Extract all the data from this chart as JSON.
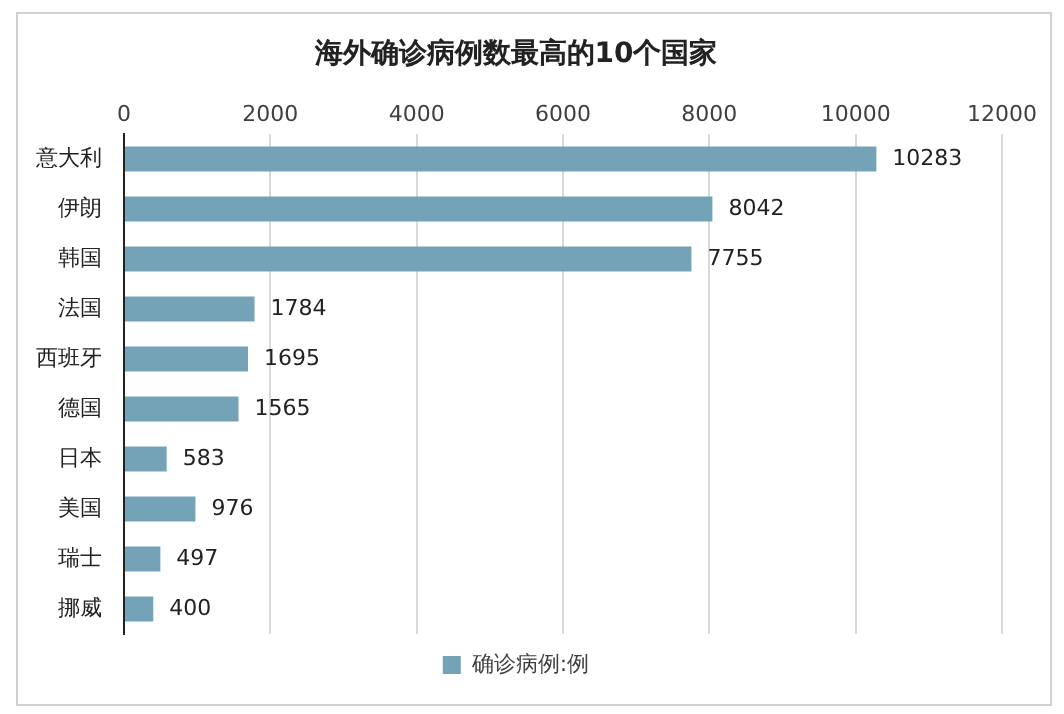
{
  "chart_data": {
    "type": "bar",
    "orientation": "horizontal",
    "title": "海外确诊病例数最高的10个国家",
    "categories": [
      "意大利",
      "伊朗",
      "韩国",
      "法国",
      "西班牙",
      "德国",
      "日本",
      "美国",
      "瑞士",
      "挪威"
    ],
    "series": [
      {
        "name": "确诊病例:例",
        "color": "#74a3b7",
        "values": [
          10283,
          8042,
          7755,
          1784,
          1695,
          1565,
          583,
          976,
          497,
          400
        ]
      }
    ],
    "xlim": [
      0,
      12000
    ],
    "xticks": [
      0,
      2000,
      4000,
      6000,
      8000,
      10000,
      12000
    ],
    "grid": "x",
    "legend": "bottom",
    "data_labels": true
  }
}
